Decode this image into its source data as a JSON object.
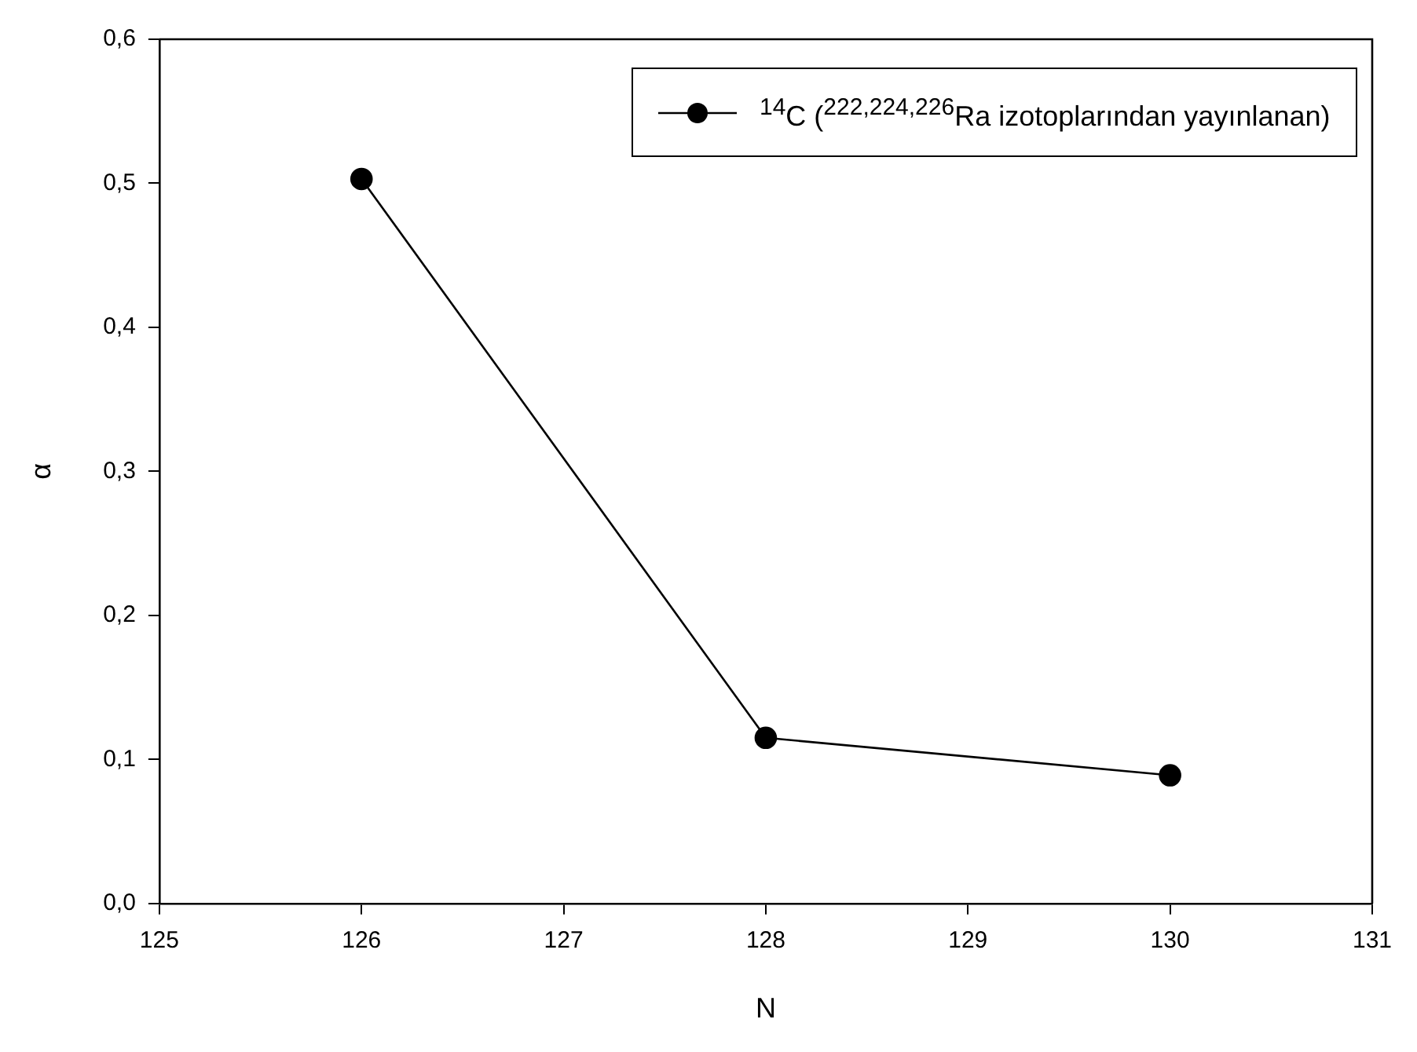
{
  "chart_data": {
    "type": "line",
    "xlabel": "N",
    "ylabel": "α",
    "x": [
      126,
      128,
      130
    ],
    "series": [
      {
        "name": "$^{14}$C ($^{222,224,226}$Ra izotoplarından yayınlanan)",
        "color": "#000000",
        "values": [
          0.503,
          0.115,
          0.089
        ]
      }
    ],
    "xlim": [
      125,
      131
    ],
    "xticks": [
      125,
      126,
      127,
      128,
      129,
      130,
      131
    ],
    "ylim": [
      0,
      0.6
    ],
    "yticks": [
      {
        "value": 0,
        "label": "0,0"
      },
      {
        "value": 0.1,
        "label": "0,1"
      },
      {
        "value": 0.2,
        "label": "0,2"
      },
      {
        "value": 0.3,
        "label": "0,3"
      },
      {
        "value": 0.4,
        "label": "0,4"
      },
      {
        "value": 0.5,
        "label": "0,5"
      },
      {
        "value": 0.6,
        "label": "0,6"
      }
    ],
    "grid": false,
    "legend": "top right",
    "marker": "circle",
    "line_style": "solid"
  }
}
